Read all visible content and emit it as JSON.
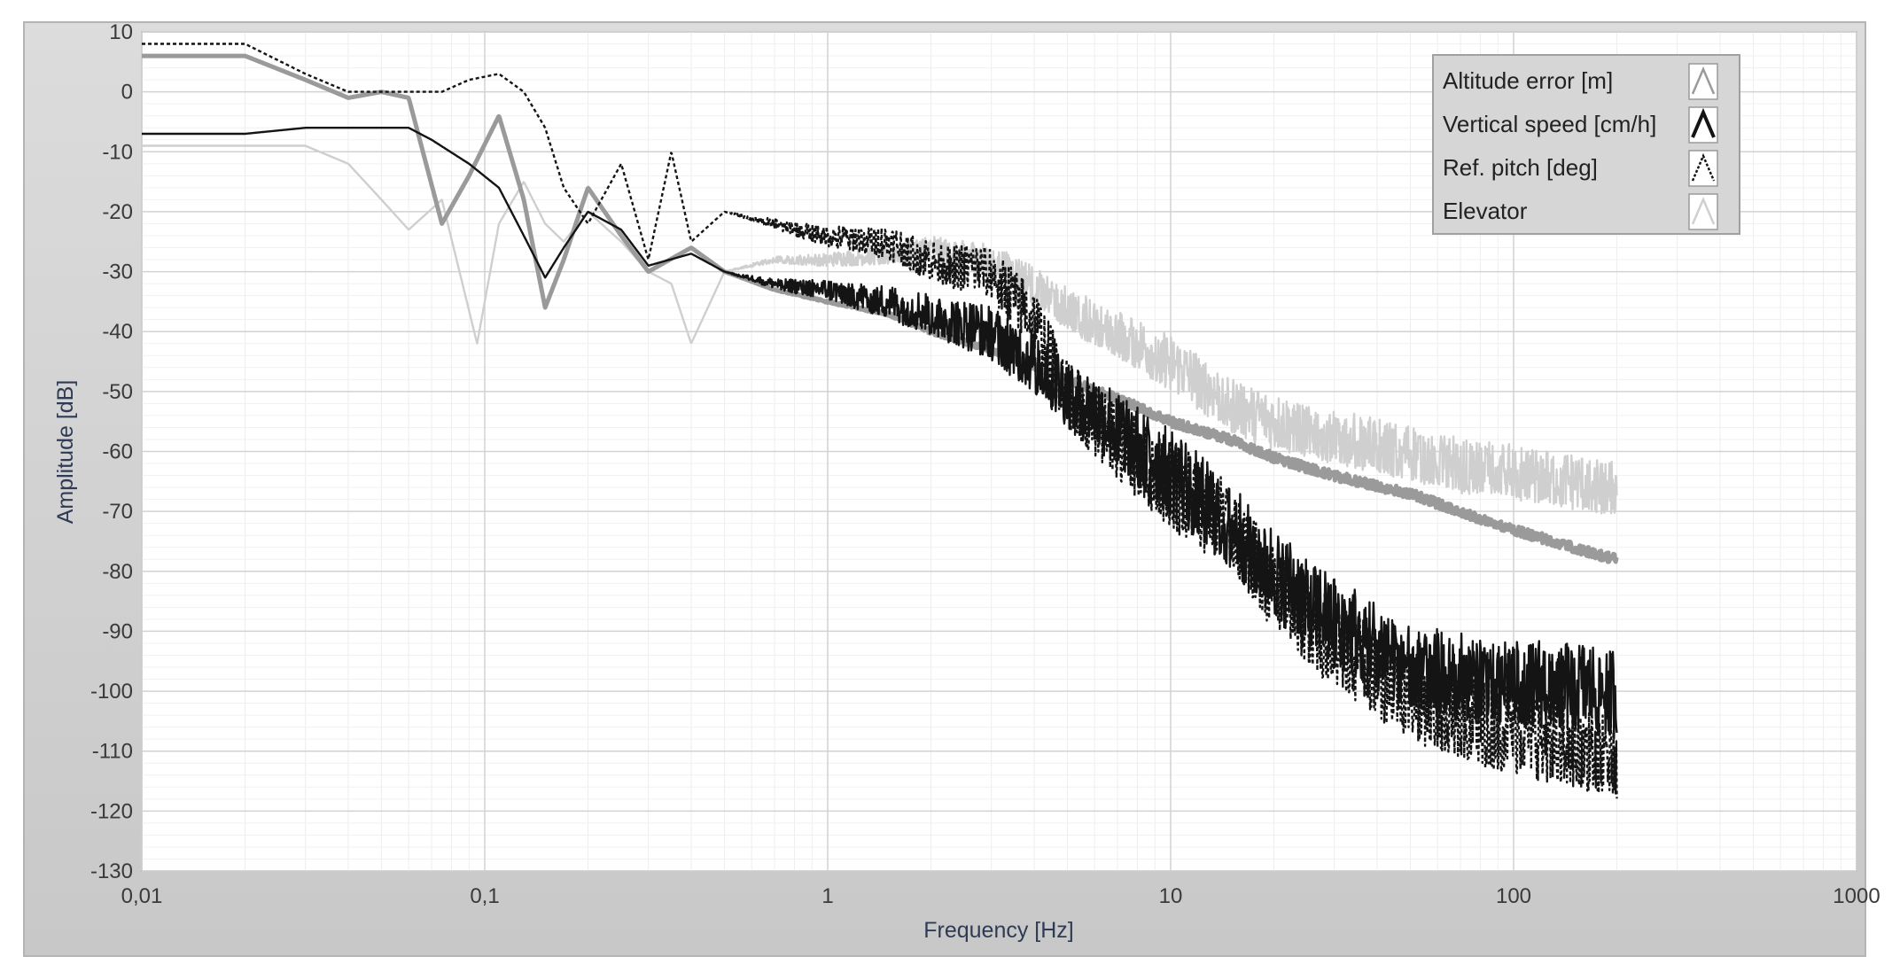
{
  "chart_data": {
    "type": "line",
    "xlabel": "Frequency [Hz]",
    "ylabel": "Amplitude [dB]",
    "x_scale": "log",
    "xlim": [
      0.01,
      1000
    ],
    "ylim": [
      -130,
      10
    ],
    "x_ticks": [
      0.01,
      0.1,
      1,
      10,
      100,
      1000
    ],
    "x_tick_labels": [
      "0,01",
      "0,1",
      "1",
      "10",
      "100",
      "1000"
    ],
    "y_ticks": [
      10,
      0,
      -10,
      -20,
      -30,
      -40,
      -50,
      -60,
      -70,
      -80,
      -90,
      -100,
      -110,
      -120,
      -130
    ],
    "y_tick_labels": [
      "10",
      "0",
      "-10",
      "-20",
      "-30",
      "-40",
      "-50",
      "-60",
      "-70",
      "-80",
      "-90",
      "-100",
      "-110",
      "-120",
      "-130"
    ],
    "grid": true,
    "legend_position": "top-right",
    "series": [
      {
        "name": "Altitude error [m]",
        "color": "#9a9a9a",
        "x": [
          0.01,
          0.02,
          0.03,
          0.04,
          0.05,
          0.06,
          0.075,
          0.09,
          0.11,
          0.13,
          0.15,
          0.17,
          0.2,
          0.25,
          0.3,
          0.4,
          0.5,
          0.7,
          1,
          1.5,
          2,
          3,
          5,
          7,
          10,
          15,
          20,
          30,
          50,
          70,
          100,
          150,
          200
        ],
        "y": [
          6,
          6,
          2,
          -1,
          0,
          -1,
          -22,
          -14,
          -4,
          -18,
          -36,
          -28,
          -16,
          -24,
          -30,
          -26,
          -30,
          -33,
          -35,
          -37,
          -40,
          -43,
          -48,
          -51,
          -55,
          -58,
          -61,
          -64,
          -67,
          -70,
          -73,
          -76,
          -78
        ]
      },
      {
        "name": "Vertical speed [cm/h]",
        "color": "#141414",
        "x": [
          0.01,
          0.02,
          0.03,
          0.04,
          0.05,
          0.06,
          0.07,
          0.09,
          0.11,
          0.13,
          0.15,
          0.17,
          0.2,
          0.25,
          0.3,
          0.4,
          0.5,
          0.7,
          1,
          1.5,
          2,
          3,
          4,
          5,
          7,
          10,
          15,
          20,
          30,
          50,
          70,
          100,
          150,
          200
        ],
        "y": [
          -7,
          -7,
          -6,
          -6,
          -6,
          -6,
          -8,
          -12,
          -16,
          -24,
          -31,
          -26,
          -20,
          -23,
          -29,
          -27,
          -30,
          -32,
          -33,
          -35,
          -37,
          -40,
          -45,
          -50,
          -56,
          -63,
          -72,
          -80,
          -88,
          -95,
          -97,
          -98,
          -99,
          -100
        ]
      },
      {
        "name": "Ref. pitch [deg]",
        "color": "#141414",
        "dashed": true,
        "x": [
          0.01,
          0.02,
          0.03,
          0.04,
          0.05,
          0.06,
          0.075,
          0.09,
          0.11,
          0.13,
          0.15,
          0.17,
          0.2,
          0.25,
          0.3,
          0.35,
          0.4,
          0.5,
          0.7,
          1,
          1.5,
          2,
          3,
          4,
          5,
          7,
          10,
          15,
          20,
          30,
          50,
          70,
          100,
          150,
          200
        ],
        "y": [
          8,
          8,
          3,
          0,
          0,
          0,
          0,
          2,
          3,
          0,
          -6,
          -16,
          -22,
          -12,
          -28,
          -10,
          -25,
          -20,
          -22,
          -24,
          -25,
          -28,
          -30,
          -38,
          -50,
          -58,
          -65,
          -72,
          -82,
          -92,
          -100,
          -104,
          -106,
          -108,
          -110
        ]
      },
      {
        "name": "Elevator",
        "color": "#cfcfcf",
        "x": [
          0.01,
          0.02,
          0.03,
          0.04,
          0.05,
          0.06,
          0.075,
          0.095,
          0.11,
          0.13,
          0.15,
          0.17,
          0.2,
          0.25,
          0.3,
          0.35,
          0.4,
          0.5,
          0.7,
          1,
          1.5,
          2,
          3,
          4,
          5,
          7,
          10,
          15,
          20,
          30,
          50,
          70,
          100,
          150,
          200
        ],
        "y": [
          -9,
          -9,
          -9,
          -12,
          -18,
          -23,
          -18,
          -42,
          -22,
          -15,
          -22,
          -25,
          -20,
          -25,
          -30,
          -32,
          -42,
          -30,
          -28,
          -28,
          -27,
          -26,
          -28,
          -32,
          -36,
          -40,
          -45,
          -52,
          -55,
          -57,
          -60,
          -62,
          -63,
          -65,
          -66
        ]
      }
    ]
  }
}
